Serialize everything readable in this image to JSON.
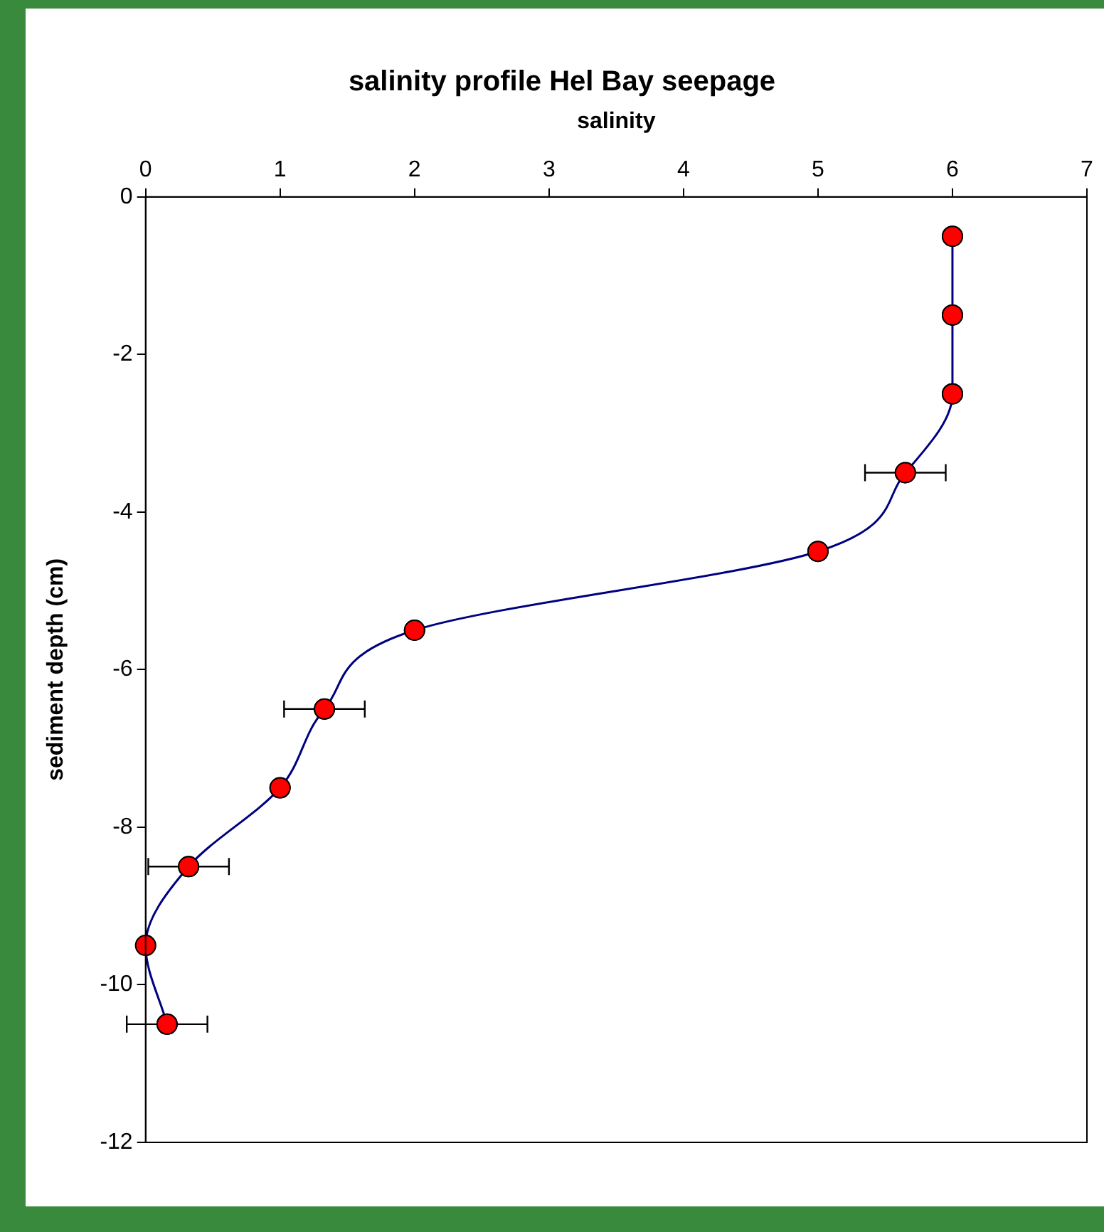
{
  "chart_data": {
    "type": "line",
    "title": "salinity profile Hel Bay seepage",
    "xlabel": "salinity",
    "ylabel": "sediment depth (cm)",
    "x": [
      6,
      6,
      6,
      5.65,
      5,
      2,
      1.33,
      1,
      0.32,
      0,
      0.16
    ],
    "values": [
      -0.5,
      -1.5,
      -2.5,
      -3.5,
      -4.5,
      -5.5,
      -6.5,
      -7.5,
      -8.5,
      -9.5,
      -10.5
    ],
    "xerrors": [
      null,
      null,
      null,
      0.3,
      null,
      null,
      0.3,
      null,
      0.3,
      null,
      0.3
    ],
    "color": "#000080",
    "marker": "circle",
    "xlim": [
      0,
      7
    ],
    "xticks": [
      0,
      1,
      2,
      3,
      4,
      5,
      6,
      7
    ],
    "ylim": [
      -12,
      0
    ],
    "yticks": [
      0,
      -2,
      -4,
      -6,
      -8,
      -10,
      -12
    ],
    "grid": false,
    "legend": false
  }
}
